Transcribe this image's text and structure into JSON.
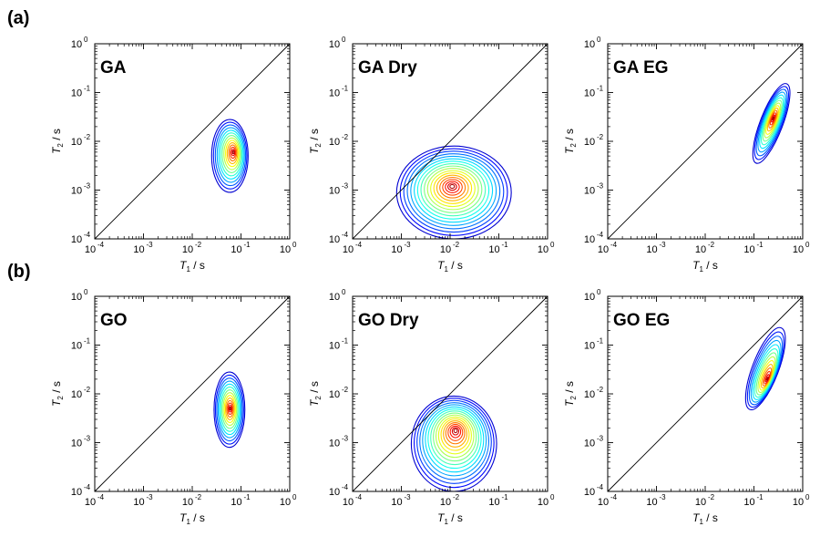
{
  "figure": {
    "row_labels": [
      "(a)",
      "(b)"
    ]
  },
  "chart_data": [
    {
      "type": "contour",
      "row": "(a)",
      "title": "GA",
      "xlabel": {
        "symbol": "T",
        "sub": "1",
        "unit": " / s"
      },
      "ylabel": {
        "symbol": "T",
        "sub": "2",
        "unit": " / s"
      },
      "x_scale": "log",
      "y_scale": "log",
      "xlim": [
        0.0001,
        1
      ],
      "ylim": [
        0.0001,
        1
      ],
      "xticks": [
        {
          "base": "10",
          "exp": "-4"
        },
        {
          "base": "10",
          "exp": "-3"
        },
        {
          "base": "10",
          "exp": "-2"
        },
        {
          "base": "10",
          "exp": "-1"
        },
        {
          "base": "10",
          "exp": "0"
        }
      ],
      "yticks": [
        {
          "base": "10",
          "exp": "-4"
        },
        {
          "base": "10",
          "exp": "-3"
        },
        {
          "base": "10",
          "exp": "-2"
        },
        {
          "base": "10",
          "exp": "-1"
        },
        {
          "base": "10",
          "exp": "0"
        }
      ],
      "reference_line": "T2 = T1",
      "peak": {
        "T1": 0.07,
        "T2": 0.006
      },
      "outer_extent": {
        "T1": [
          0.025,
          0.14
        ],
        "T2": [
          0.0009,
          0.028
        ]
      },
      "levels": 14,
      "colormap": "jet"
    },
    {
      "type": "contour",
      "row": "(a)",
      "title": "GA Dry",
      "xlabel": {
        "symbol": "T",
        "sub": "1",
        "unit": " / s"
      },
      "ylabel": {
        "symbol": "T",
        "sub": "2",
        "unit": " / s"
      },
      "x_scale": "log",
      "y_scale": "log",
      "xlim": [
        0.0001,
        1
      ],
      "ylim": [
        0.0001,
        1
      ],
      "xticks": [
        {
          "base": "10",
          "exp": "-4"
        },
        {
          "base": "10",
          "exp": "-3"
        },
        {
          "base": "10",
          "exp": "-2"
        },
        {
          "base": "10",
          "exp": "-1"
        },
        {
          "base": "10",
          "exp": "0"
        }
      ],
      "yticks": [
        {
          "base": "10",
          "exp": "-4"
        },
        {
          "base": "10",
          "exp": "-3"
        },
        {
          "base": "10",
          "exp": "-2"
        },
        {
          "base": "10",
          "exp": "-1"
        },
        {
          "base": "10",
          "exp": "0"
        }
      ],
      "reference_line": "T2 = T1",
      "peak": {
        "T1": 0.011,
        "T2": 0.0012
      },
      "outer_extent": {
        "T1": [
          0.0008,
          0.18
        ],
        "T2": [
          0.0001,
          0.008
        ]
      },
      "levels": 18,
      "colormap": "jet"
    },
    {
      "type": "contour",
      "row": "(a)",
      "title": "GA EG",
      "xlabel": {
        "symbol": "T",
        "sub": "1",
        "unit": " / s"
      },
      "ylabel": {
        "symbol": "T",
        "sub": "2",
        "unit": " / s"
      },
      "x_scale": "log",
      "y_scale": "log",
      "xlim": [
        0.0001,
        1
      ],
      "ylim": [
        0.0001,
        1
      ],
      "xticks": [
        {
          "base": "10",
          "exp": "-4"
        },
        {
          "base": "10",
          "exp": "-3"
        },
        {
          "base": "10",
          "exp": "-2"
        },
        {
          "base": "10",
          "exp": "-1"
        },
        {
          "base": "10",
          "exp": "0"
        }
      ],
      "yticks": [
        {
          "base": "10",
          "exp": "-4"
        },
        {
          "base": "10",
          "exp": "-3"
        },
        {
          "base": "10",
          "exp": "-2"
        },
        {
          "base": "10",
          "exp": "-1"
        },
        {
          "base": "10",
          "exp": "0"
        }
      ],
      "reference_line": "T2 = T1",
      "peak": {
        "T1": 0.25,
        "T2": 0.03
      },
      "outer_extent": {
        "T1": [
          0.13,
          0.4
        ],
        "T2": [
          0.003,
          0.18
        ]
      },
      "levels": 14,
      "colormap": "jet"
    },
    {
      "type": "contour",
      "row": "(b)",
      "title": "GO",
      "xlabel": {
        "symbol": "T",
        "sub": "1",
        "unit": " / s"
      },
      "ylabel": {
        "symbol": "T",
        "sub": "2",
        "unit": " / s"
      },
      "x_scale": "log",
      "y_scale": "log",
      "xlim": [
        0.0001,
        1
      ],
      "ylim": [
        0.0001,
        1
      ],
      "xticks": [
        {
          "base": "10",
          "exp": "-4"
        },
        {
          "base": "10",
          "exp": "-3"
        },
        {
          "base": "10",
          "exp": "-2"
        },
        {
          "base": "10",
          "exp": "-1"
        },
        {
          "base": "10",
          "exp": "0"
        }
      ],
      "yticks": [
        {
          "base": "10",
          "exp": "-4"
        },
        {
          "base": "10",
          "exp": "-3"
        },
        {
          "base": "10",
          "exp": "-2"
        },
        {
          "base": "10",
          "exp": "-1"
        },
        {
          "base": "10",
          "exp": "0"
        }
      ],
      "reference_line": "T2 = T1",
      "peak": {
        "T1": 0.06,
        "T2": 0.005
      },
      "outer_extent": {
        "T1": [
          0.028,
          0.12
        ],
        "T2": [
          0.0008,
          0.028
        ]
      },
      "levels": 14,
      "colormap": "jet"
    },
    {
      "type": "contour",
      "row": "(b)",
      "title": "GO Dry",
      "xlabel": {
        "symbol": "T",
        "sub": "1",
        "unit": " / s"
      },
      "ylabel": {
        "symbol": "T",
        "sub": "2",
        "unit": " / s"
      },
      "x_scale": "log",
      "y_scale": "log",
      "xlim": [
        0.0001,
        1
      ],
      "ylim": [
        0.0001,
        1
      ],
      "xticks": [
        {
          "base": "10",
          "exp": "-4"
        },
        {
          "base": "10",
          "exp": "-3"
        },
        {
          "base": "10",
          "exp": "-2"
        },
        {
          "base": "10",
          "exp": "-1"
        },
        {
          "base": "10",
          "exp": "0"
        }
      ],
      "yticks": [
        {
          "base": "10",
          "exp": "-4"
        },
        {
          "base": "10",
          "exp": "-3"
        },
        {
          "base": "10",
          "exp": "-2"
        },
        {
          "base": "10",
          "exp": "-1"
        },
        {
          "base": "10",
          "exp": "0"
        }
      ],
      "reference_line": "T2 = T1",
      "peak": {
        "T1": 0.013,
        "T2": 0.0018
      },
      "outer_extent": {
        "T1": [
          0.0016,
          0.09
        ],
        "T2": [
          0.0001,
          0.009
        ]
      },
      "levels": 18,
      "colormap": "jet"
    },
    {
      "type": "contour",
      "row": "(b)",
      "title": "GO EG",
      "xlabel": {
        "symbol": "T",
        "sub": "1",
        "unit": " / s"
      },
      "ylabel": {
        "symbol": "T",
        "sub": "2",
        "unit": " / s"
      },
      "x_scale": "log",
      "y_scale": "log",
      "xlim": [
        0.0001,
        1
      ],
      "ylim": [
        0.0001,
        1
      ],
      "xticks": [
        {
          "base": "10",
          "exp": "-4"
        },
        {
          "base": "10",
          "exp": "-3"
        },
        {
          "base": "10",
          "exp": "-2"
        },
        {
          "base": "10",
          "exp": "-1"
        },
        {
          "base": "10",
          "exp": "0"
        }
      ],
      "yticks": [
        {
          "base": "10",
          "exp": "-4"
        },
        {
          "base": "10",
          "exp": "-3"
        },
        {
          "base": "10",
          "exp": "-2"
        },
        {
          "base": "10",
          "exp": "-1"
        },
        {
          "base": "10",
          "exp": "0"
        }
      ],
      "reference_line": "T2 = T1",
      "peak": {
        "T1": 0.19,
        "T2": 0.02
      },
      "outer_extent": {
        "T1": [
          0.09,
          0.33
        ],
        "T2": [
          0.004,
          0.27
        ]
      },
      "levels": 14,
      "colormap": "jet"
    }
  ]
}
